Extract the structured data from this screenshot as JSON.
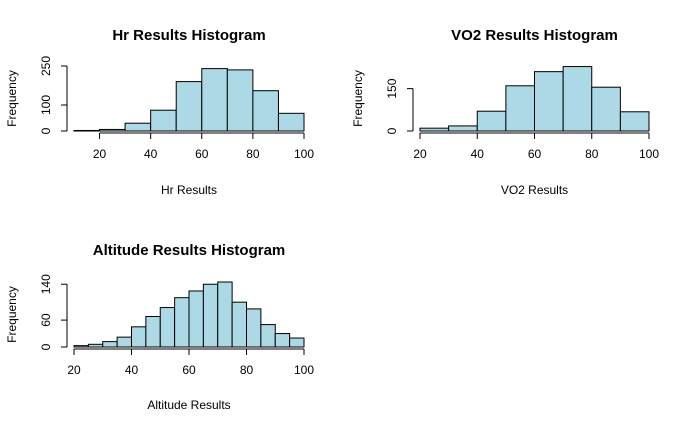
{
  "chart_data": [
    {
      "type": "bar",
      "title": "Hr Results Histogram",
      "xlabel": "Hr Results",
      "ylabel": "Frequency",
      "bin_edges": [
        10,
        20,
        30,
        40,
        50,
        60,
        70,
        80,
        90,
        100
      ],
      "values": [
        2,
        6,
        30,
        80,
        190,
        240,
        235,
        155,
        68
      ],
      "x_ticks": [
        20,
        40,
        60,
        80,
        100
      ],
      "y_ticks": [
        0,
        100,
        250
      ],
      "xlim": [
        10,
        100
      ],
      "ylim": [
        0,
        250
      ],
      "bar_color": "#add8e6",
      "grid": false
    },
    {
      "type": "bar",
      "title": "VO2 Results Histogram",
      "xlabel": "VO2 Results",
      "ylabel": "Frequency",
      "bin_edges": [
        20,
        30,
        40,
        50,
        60,
        70,
        80,
        90,
        100
      ],
      "values": [
        10,
        18,
        70,
        160,
        210,
        228,
        155,
        68
      ],
      "x_ticks": [
        20,
        40,
        60,
        80,
        100
      ],
      "y_ticks": [
        0,
        150
      ],
      "xlim": [
        20,
        100
      ],
      "ylim": [
        0,
        230
      ],
      "bar_color": "#add8e6",
      "grid": false
    },
    {
      "type": "bar",
      "title": "Altitude Results Histogram",
      "xlabel": "Altitude Results",
      "ylabel": "Frequency",
      "bin_edges": [
        20,
        25,
        30,
        35,
        40,
        45,
        50,
        55,
        60,
        65,
        70,
        75,
        80,
        85,
        90,
        95,
        100
      ],
      "values": [
        3,
        6,
        12,
        22,
        45,
        68,
        88,
        110,
        125,
        140,
        145,
        100,
        85,
        50,
        30,
        20
      ],
      "x_ticks": [
        20,
        40,
        60,
        80,
        100
      ],
      "y_ticks": [
        0,
        60,
        140
      ],
      "xlim": [
        20,
        100
      ],
      "ylim": [
        0,
        145
      ],
      "bar_color": "#add8e6",
      "grid": false
    }
  ]
}
